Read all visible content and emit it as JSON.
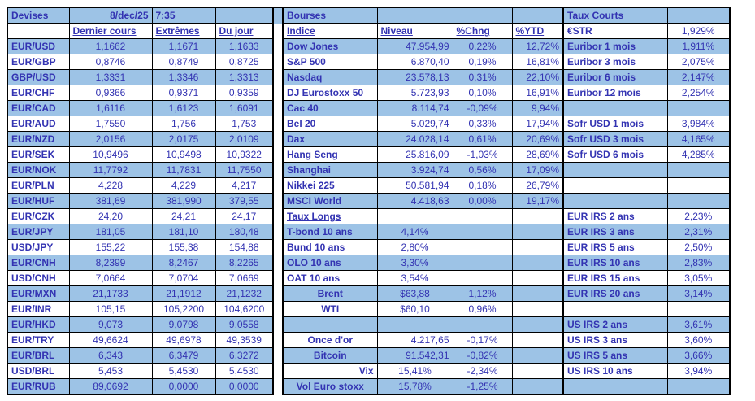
{
  "colors": {
    "band_blue": "#9DC3E6",
    "text_blue": "#3333B2",
    "border": "#000000"
  },
  "devises": {
    "title": "Devises",
    "date": "8/dec/25",
    "time": "7:35",
    "col_headers": [
      "Dernier cours",
      "Extrêmes",
      "Du jour"
    ],
    "rows": [
      {
        "pair": "EUR/USD",
        "last": "1,1662",
        "extremes": "1,1671",
        "du_jour": "1,1633"
      },
      {
        "pair": "EUR/GBP",
        "last": "0,8746",
        "extremes": "0,8749",
        "du_jour": "0,8725"
      },
      {
        "pair": "GBP/USD",
        "last": "1,3331",
        "extremes": "1,3346",
        "du_jour": "1,3313"
      },
      {
        "pair": "EUR/CHF",
        "last": "0,9366",
        "extremes": "0,9371",
        "du_jour": "0,9359"
      },
      {
        "pair": "EUR/CAD",
        "last": "1,6116",
        "extremes": "1,6123",
        "du_jour": "1,6091"
      },
      {
        "pair": "EUR/AUD",
        "last": "1,7550",
        "extremes": "1,756",
        "du_jour": "1,753"
      },
      {
        "pair": "EUR/NZD",
        "last": "2,0156",
        "extremes": "2,0175",
        "du_jour": "2,0109"
      },
      {
        "pair": "EUR/SEK",
        "last": "10,9496",
        "extremes": "10,9498",
        "du_jour": "10,9322"
      },
      {
        "pair": "EUR/NOK",
        "last": "11,7792",
        "extremes": "11,7831",
        "du_jour": "11,7550"
      },
      {
        "pair": "EUR/PLN",
        "last": "4,228",
        "extremes": "4,229",
        "du_jour": "4,217"
      },
      {
        "pair": "EUR/HUF",
        "last": "381,69",
        "extremes": "381,990",
        "du_jour": "379,55"
      },
      {
        "pair": "EUR/CZK",
        "last": "24,20",
        "extremes": "24,21",
        "du_jour": "24,17"
      },
      {
        "pair": "EUR/JPY",
        "last": "181,05",
        "extremes": "181,10",
        "du_jour": "180,48"
      },
      {
        "pair": "USD/JPY",
        "last": "155,22",
        "extremes": "155,38",
        "du_jour": "154,88"
      },
      {
        "pair": "EUR/CNH",
        "last": "8,2399",
        "extremes": "8,2467",
        "du_jour": "8,2265"
      },
      {
        "pair": "USD/CNH",
        "last": "7,0664",
        "extremes": "7,0704",
        "du_jour": "7,0669"
      },
      {
        "pair": "EUR/MXN",
        "last": "21,1733",
        "extremes": "21,1912",
        "du_jour": "21,1232"
      },
      {
        "pair": "EUR/INR",
        "last": "105,15",
        "extremes": "105,2200",
        "du_jour": "104,6200"
      },
      {
        "pair": "EUR/HKD",
        "last": "9,073",
        "extremes": "9,0798",
        "du_jour": "9,0558"
      },
      {
        "pair": "EUR/TRY",
        "last": "49,6624",
        "extremes": "49,6978",
        "du_jour": "49,3539"
      },
      {
        "pair": "EUR/BRL",
        "last": "6,343",
        "extremes": "6,3479",
        "du_jour": "6,3272"
      },
      {
        "pair": "USD/BRL",
        "last": "5,453",
        "extremes": "5,4530",
        "du_jour": "5,4530"
      },
      {
        "pair": "EUR/RUB",
        "last": "89,0692",
        "extremes": "0,0000",
        "du_jour": "0,0000"
      }
    ]
  },
  "bourses": {
    "title": "Bourses",
    "col_headers": [
      "Indice",
      "Niveau",
      "%Chng",
      "%YTD"
    ],
    "rows": [
      {
        "kind": "index",
        "label": "Dow Jones",
        "niveau": "47.954,99",
        "chng": "0,22%",
        "ytd": "12,72%"
      },
      {
        "kind": "index",
        "label": "S&P 500",
        "niveau": "6.870,40",
        "chng": "0,19%",
        "ytd": "16,81%"
      },
      {
        "kind": "index",
        "label": "Nasdaq",
        "niveau": "23.578,13",
        "chng": "0,31%",
        "ytd": "22,10%"
      },
      {
        "kind": "index",
        "label": "DJ Eurostoxx 50",
        "niveau": "5.723,93",
        "chng": "0,10%",
        "ytd": "16,91%"
      },
      {
        "kind": "index",
        "label": "Cac 40",
        "niveau": "8.114,74",
        "chng": "-0,09%",
        "ytd": "9,94%"
      },
      {
        "kind": "index",
        "label": "Bel 20",
        "niveau": "5.029,74",
        "chng": "0,33%",
        "ytd": "17,94%"
      },
      {
        "kind": "index",
        "label": "Dax",
        "niveau": "24.028,14",
        "chng": "0,61%",
        "ytd": "20,69%"
      },
      {
        "kind": "index",
        "label": "Hang Seng",
        "niveau": "25.816,09",
        "chng": "-1,03%",
        "ytd": "28,69%"
      },
      {
        "kind": "index",
        "label": "Shanghai",
        "niveau": "3.924,74",
        "chng": "0,56%",
        "ytd": "17,09%"
      },
      {
        "kind": "index",
        "label": "Nikkei 225",
        "niveau": "50.581,94",
        "chng": "0,18%",
        "ytd": "26,79%"
      },
      {
        "kind": "index",
        "label": "MSCI World",
        "niveau": "4.418,63",
        "chng": "0,00%",
        "ytd": "19,17%"
      },
      {
        "kind": "subhead",
        "label": "Taux Longs",
        "niveau": "",
        "chng": "",
        "ytd": ""
      },
      {
        "kind": "rate",
        "label": "T-bond 10 ans",
        "niveau": "4,14%",
        "chng": "",
        "ytd": ""
      },
      {
        "kind": "rate",
        "label": "Bund 10 ans",
        "niveau": "2,80%",
        "chng": "",
        "ytd": ""
      },
      {
        "kind": "rate",
        "label": "OLO 10 ans",
        "niveau": "3,30%",
        "chng": "",
        "ytd": ""
      },
      {
        "kind": "rate",
        "label": "OAT 10 ans",
        "niveau": "3,54%",
        "chng": "",
        "ytd": ""
      },
      {
        "kind": "spot",
        "label": "Brent",
        "niveau": "$63,88",
        "chng": "1,12%",
        "ytd": ""
      },
      {
        "kind": "spot",
        "label": "WTI",
        "niveau": "$60,10",
        "chng": "0,96%",
        "ytd": ""
      },
      {
        "kind": "blank",
        "label": "",
        "niveau": "",
        "chng": "",
        "ytd": ""
      },
      {
        "kind": "spotr",
        "label": "Once d'or",
        "niveau": "4.217,65",
        "chng": "-0,17%",
        "ytd": ""
      },
      {
        "kind": "spotr",
        "label": "Bitcoin",
        "niveau": "91.542,31",
        "chng": "-0,82%",
        "ytd": ""
      },
      {
        "kind": "vix",
        "label": "Vix",
        "niveau": "15,41%",
        "chng": "-2,34%",
        "ytd": ""
      },
      {
        "kind": "spot",
        "label": "Vol Euro stoxx",
        "niveau": "15,78%",
        "chng": "-1,25%",
        "ytd": ""
      }
    ]
  },
  "taux_courts": {
    "title": "Taux Courts",
    "header_label": "€STR",
    "header_value": "1,929%",
    "rows": [
      {
        "label": "Euribor 1 mois",
        "value": "1,911%"
      },
      {
        "label": "Euribor 3 mois",
        "value": "2,075%"
      },
      {
        "label": "Euribor 6 mois",
        "value": "2,147%"
      },
      {
        "label": "Euribor 12 mois",
        "value": "2,254%"
      },
      {
        "label": "",
        "value": ""
      },
      {
        "label": "Sofr USD 1 mois",
        "value": "3,984%"
      },
      {
        "label": "Sofr USD 3 mois",
        "value": "4,165%"
      },
      {
        "label": "Sofr USD 6 mois",
        "value": "4,285%"
      },
      {
        "label": "",
        "value": ""
      },
      {
        "label": "",
        "value": ""
      },
      {
        "label": "",
        "value": ""
      },
      {
        "label": "EUR IRS 2 ans",
        "value": "2,23%"
      },
      {
        "label": "EUR IRS 3 ans",
        "value": "2,31%"
      },
      {
        "label": "EUR IRS 5 ans",
        "value": "2,50%"
      },
      {
        "label": "EUR IRS 10 ans",
        "value": "2,83%"
      },
      {
        "label": "EUR IRS 15 ans",
        "value": "3,05%"
      },
      {
        "label": "EUR IRS 20 ans",
        "value": "3,14%"
      },
      {
        "label": "",
        "value": ""
      },
      {
        "label": "US IRS 2 ans",
        "value": "3,61%"
      },
      {
        "label": "US IRS 3 ans",
        "value": "3,60%"
      },
      {
        "label": "US IRS 5 ans",
        "value": "3,66%"
      },
      {
        "label": "US IRS 10 ans",
        "value": "3,94%"
      },
      {
        "label": "",
        "value": ""
      }
    ]
  }
}
